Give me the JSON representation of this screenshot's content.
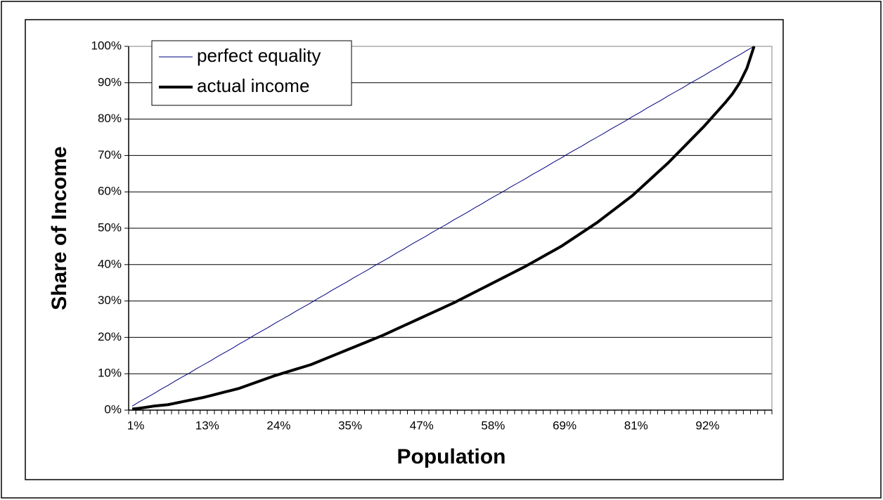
{
  "chart_data": {
    "type": "line",
    "x_label": "Population",
    "y_label": "Share of Income",
    "categories": [
      "1%",
      null,
      null,
      null,
      null,
      null,
      null,
      null,
      null,
      null,
      "13%",
      null,
      null,
      null,
      null,
      null,
      null,
      null,
      null,
      null,
      "24%",
      null,
      null,
      null,
      null,
      null,
      null,
      null,
      null,
      null,
      "35%",
      null,
      null,
      null,
      null,
      null,
      null,
      null,
      null,
      null,
      "47%",
      null,
      null,
      null,
      null,
      null,
      null,
      null,
      null,
      null,
      "58%",
      null,
      null,
      null,
      null,
      null,
      null,
      null,
      null,
      null,
      "69%",
      null,
      null,
      null,
      null,
      null,
      null,
      null,
      null,
      null,
      "81%",
      null,
      null,
      null,
      null,
      null,
      null,
      null,
      null,
      null,
      "92%",
      null,
      null,
      null,
      null,
      null,
      null,
      null,
      null,
      null
    ],
    "series": [
      {
        "name": "perfect equality",
        "color": "#000080",
        "width": 1,
        "values": [
          1.1,
          2.3,
          3.4,
          4.5,
          5.7,
          6.8,
          8.0,
          9.1,
          10.2,
          11.4,
          12.5,
          13.6,
          14.8,
          15.9,
          17.0,
          18.2,
          19.3,
          20.5,
          21.6,
          22.7,
          23.9,
          25.0,
          26.1,
          27.3,
          28.4,
          29.5,
          30.7,
          31.8,
          33.0,
          34.1,
          35.2,
          36.4,
          37.5,
          38.6,
          39.8,
          40.9,
          42.0,
          43.2,
          44.3,
          45.5,
          46.6,
          47.7,
          48.9,
          50.0,
          51.1,
          52.3,
          53.4,
          54.5,
          55.7,
          56.8,
          58.0,
          59.1,
          60.2,
          61.4,
          62.5,
          63.6,
          64.8,
          65.9,
          67.0,
          68.2,
          69.3,
          70.5,
          71.6,
          72.7,
          73.9,
          75.0,
          76.1,
          77.3,
          78.4,
          79.5,
          80.7,
          81.8,
          83.0,
          84.1,
          85.2,
          86.4,
          87.5,
          88.6,
          89.8,
          90.9,
          92.0,
          93.2,
          94.3,
          95.5,
          96.6,
          97.7,
          98.9,
          100,
          null,
          null
        ]
      },
      {
        "name": "actual income",
        "color": "#000000",
        "width": 4,
        "values": [
          0.3,
          0.5,
          0.8,
          1.1,
          1.3,
          1.5,
          1.9,
          2.3,
          2.7,
          3.1,
          3.5,
          4.0,
          4.5,
          5.0,
          5.5,
          6.0,
          6.7,
          7.4,
          8.1,
          8.8,
          9.5,
          10.1,
          10.7,
          11.3,
          11.9,
          12.5,
          13.3,
          14.1,
          14.9,
          15.7,
          16.5,
          17.3,
          18.1,
          18.9,
          19.7,
          20.5,
          21.4,
          22.3,
          23.2,
          24.1,
          25.0,
          25.9,
          26.8,
          27.7,
          28.6,
          29.5,
          30.5,
          31.5,
          32.5,
          33.5,
          34.5,
          35.5,
          36.5,
          37.5,
          38.5,
          39.5,
          40.6,
          41.7,
          42.8,
          43.9,
          45.0,
          46.3,
          47.6,
          48.9,
          50.2,
          51.5,
          53.0,
          54.5,
          56.0,
          57.5,
          59.0,
          60.8,
          62.6,
          64.4,
          66.2,
          68.0,
          70.0,
          72.0,
          74.0,
          76.0,
          78.0,
          80.2,
          82.4,
          84.6,
          87.0,
          90.0,
          94.0,
          100,
          null,
          null
        ]
      }
    ],
    "ylim": [
      0,
      100
    ],
    "yticks": [
      {
        "value": 0,
        "label": "0%"
      },
      {
        "value": 10,
        "label": "10%"
      },
      {
        "value": 20,
        "label": "20%"
      },
      {
        "value": 30,
        "label": "30%"
      },
      {
        "value": 40,
        "label": "40%"
      },
      {
        "value": 50,
        "label": "50%"
      },
      {
        "value": 60,
        "label": "60%"
      },
      {
        "value": 70,
        "label": "70%"
      },
      {
        "value": 80,
        "label": "80%"
      },
      {
        "value": 90,
        "label": "90%"
      },
      {
        "value": 100,
        "label": "100%"
      }
    ],
    "grid": true,
    "legend": "top-left"
  }
}
